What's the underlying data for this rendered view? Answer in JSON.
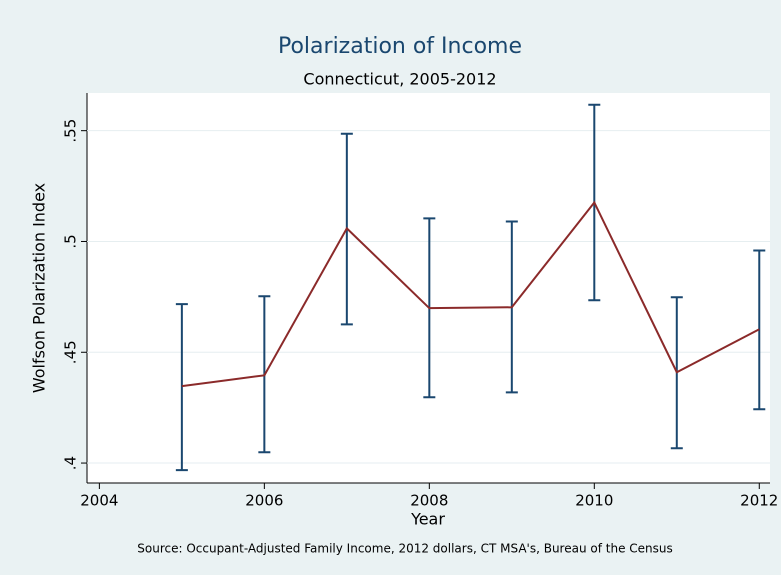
{
  "chart_data": {
    "type": "line-errorbar",
    "title": "Polarization of Income",
    "subtitle": "Connecticut, 2005-2012",
    "x_label": "Year",
    "y_label": "Wolfson Polarization Index",
    "source": "Source: Occupant-Adjusted Family Income, 2012 dollars, CT MSA's, Bureau of the Census",
    "x": [
      2005,
      2006,
      2007,
      2008,
      2009,
      2010,
      2011,
      2012
    ],
    "series": [
      {
        "color": "#8b2a2a",
        "bar_color": "#1a476f",
        "values": [
          0.4347,
          0.4396,
          0.5059,
          0.4699,
          0.4703,
          0.5176,
          0.441,
          0.4604
        ],
        "lower": [
          0.3968,
          0.4049,
          0.4626,
          0.4297,
          0.4319,
          0.4735,
          0.4067,
          0.4243
        ],
        "upper": [
          0.4717,
          0.4753,
          0.5486,
          0.5104,
          0.509,
          0.5617,
          0.4748,
          0.4959
        ]
      }
    ],
    "xlim": [
      2003.85,
      2012.13
    ],
    "ylim": [
      0.391,
      0.567
    ],
    "xticks": [
      2004,
      2006,
      2008,
      2010,
      2012
    ],
    "yticks": [
      {
        "value": 0.4,
        "label": ".4"
      },
      {
        "value": 0.45,
        "label": ".45"
      },
      {
        "value": 0.5,
        "label": ".5"
      },
      {
        "value": 0.55,
        "label": ".55"
      }
    ],
    "grid": true
  }
}
